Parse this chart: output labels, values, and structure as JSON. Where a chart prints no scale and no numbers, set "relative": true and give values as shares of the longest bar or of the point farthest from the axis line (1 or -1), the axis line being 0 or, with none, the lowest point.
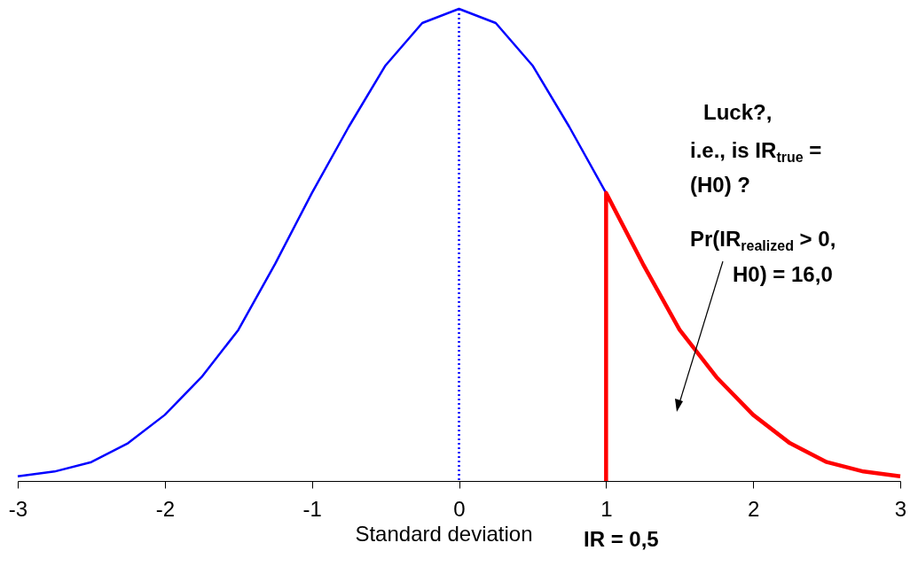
{
  "chart_data": {
    "type": "line",
    "relative": true,
    "xlabel": "Standard deviation",
    "xlim": [
      -3,
      3
    ],
    "xticks": [
      -3,
      -2,
      -1,
      0,
      1,
      2,
      3
    ],
    "grid": false,
    "marker": "none",
    "line_style": "solid",
    "series": [
      {
        "color": "#0000ff",
        "x": [
          -3,
          -2.75,
          -2.5,
          -2.25,
          -2,
          -1.75,
          -1.5,
          -1.25,
          -1,
          -0.75,
          -0.5,
          -0.25,
          0,
          0.25,
          0.5,
          0.75,
          1
        ],
        "values": [
          0.01,
          0.02,
          0.04,
          0.08,
          0.14,
          0.22,
          0.32,
          0.46,
          0.61,
          0.75,
          0.88,
          0.97,
          1,
          0.97,
          0.88,
          0.75,
          0.61
        ]
      },
      {
        "color": "#ff0000",
        "x": [
          1,
          1,
          1.25,
          1.5,
          1.75,
          2,
          2.25,
          2.5,
          2.75,
          3
        ],
        "values": [
          0,
          0.61,
          0.46,
          0.32,
          0.22,
          0.14,
          0.08,
          0.04,
          0.02,
          0.01
        ]
      }
    ],
    "ref_lines": [
      {
        "axis": "x",
        "value": 0,
        "color": "#0000ff",
        "line_style": "dotted"
      }
    ],
    "annotations": [
      "Luck?,",
      "i.e., is IR$_{true}$ =",
      "(H0) ?",
      "Pr(IR$_{realized}$ > 0,",
      "H0) = 16,0",
      "IR = 0,5"
    ]
  }
}
